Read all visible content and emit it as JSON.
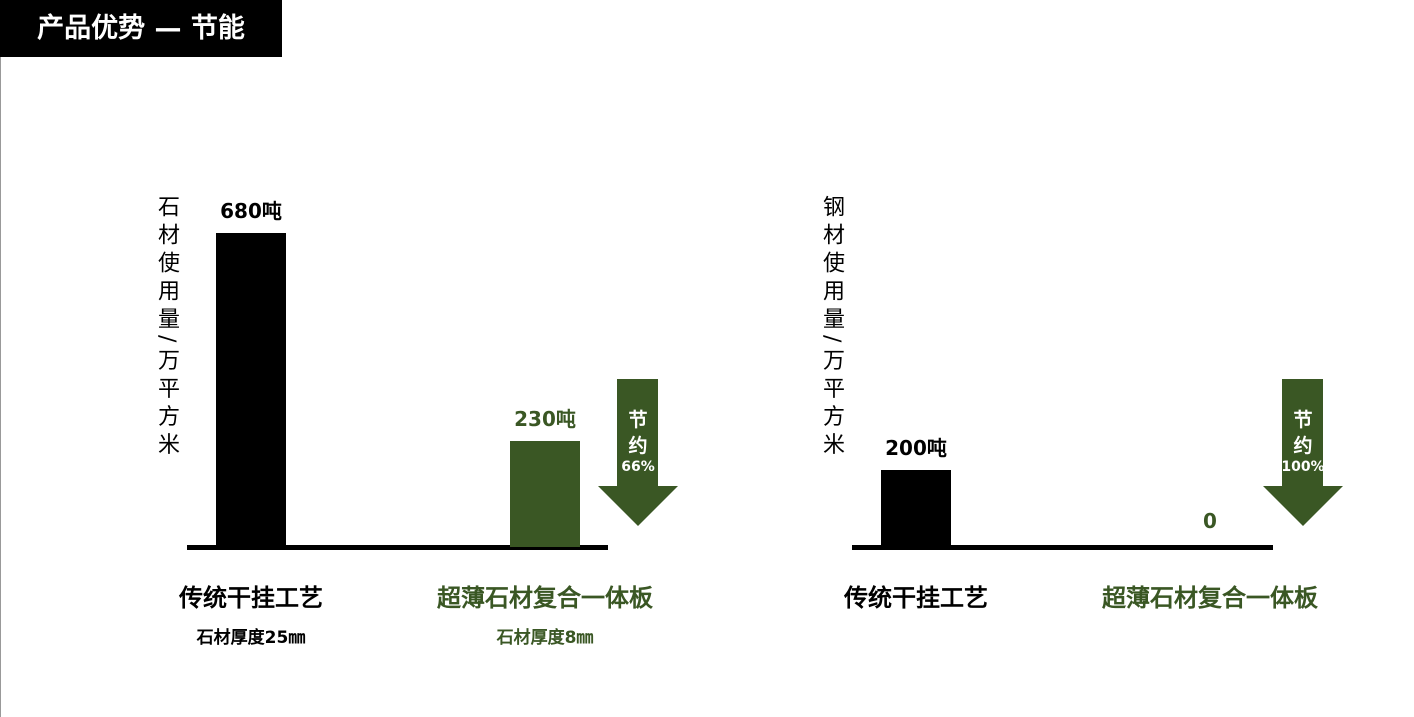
{
  "header": {
    "title": "产品优势 — 节能"
  },
  "colors": {
    "traditional": "#000000",
    "composite": "#3a5724"
  },
  "chart_data": [
    {
      "type": "bar",
      "ylabel": "石材使用量/万平方米",
      "unit": "吨",
      "categories": [
        "传统干挂工艺",
        "超薄石材复合一体板"
      ],
      "sublabels": [
        "石材厚度25㎜",
        "石材厚度8㎜"
      ],
      "values": [
        680,
        230
      ],
      "value_labels": [
        "680吨",
        "230吨"
      ],
      "savings": {
        "label1": "节",
        "label2": "约",
        "percent": "66%"
      }
    },
    {
      "type": "bar",
      "ylabel": "钢材使用量/万平方米",
      "unit": "吨",
      "categories": [
        "传统干挂工艺",
        "超薄石材复合一体板"
      ],
      "values": [
        200,
        0
      ],
      "value_labels": [
        "200吨",
        "0"
      ],
      "savings": {
        "label1": "节",
        "label2": "约",
        "percent": "100%"
      }
    }
  ]
}
